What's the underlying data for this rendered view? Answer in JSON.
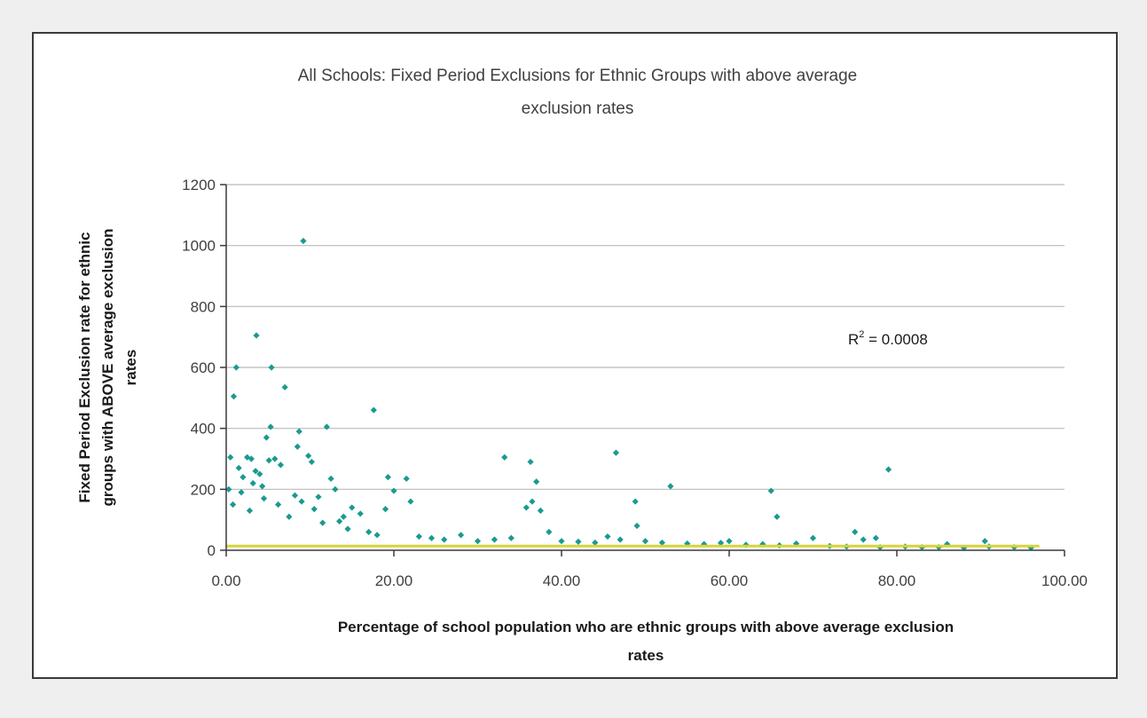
{
  "chart_data": {
    "type": "scatter",
    "title_lines": [
      "All Schools: Fixed Period Exclusions for Ethnic Groups with above average",
      "exclusion rates"
    ],
    "xlabel_lines": [
      "Percentage of school population who are ethnic groups with above average exclusion",
      "rates"
    ],
    "ylabel_lines": [
      "Fixed Period Exclusion rate for ethnic",
      "groups with ABOVE average exclusion",
      "rates"
    ],
    "xlim": [
      0,
      100
    ],
    "ylim": [
      0,
      1200
    ],
    "x_ticks": [
      "0.00",
      "20.00",
      "40.00",
      "60.00",
      "80.00",
      "100.00"
    ],
    "y_ticks": [
      "0",
      "200",
      "400",
      "600",
      "800",
      "1000",
      "1200"
    ],
    "grid": "horizontal",
    "legend": "none",
    "annotation": {
      "prefix": "R",
      "superscript": "2",
      "text": " = 0.0008"
    },
    "colors": {
      "points": "#1a9a92",
      "trendline": "#d7d43c",
      "grid": "#b9b9b9",
      "axis": "#3a3a3a"
    },
    "trendline": {
      "x": [
        0,
        97
      ],
      "y": [
        14,
        14
      ]
    },
    "series": [
      {
        "x": [
          9.2,
          3.6,
          1.2,
          5.4,
          7.0,
          0.9,
          17.6,
          12.0,
          5.3,
          8.7,
          4.8,
          9.8,
          10.2,
          8.5,
          5.1,
          2.5,
          0.5,
          1.5,
          2.0,
          3.0,
          3.5,
          4.0,
          5.8,
          6.5,
          3.2,
          4.3,
          9.0,
          12.5,
          13.0,
          11.0,
          10.5,
          19.3,
          20.0,
          21.5,
          22.0,
          19.0,
          16.0,
          15.0,
          14.0,
          13.5,
          33.2,
          36.3,
          37.0,
          36.5,
          35.8,
          37.5,
          38.5,
          46.5,
          48.8,
          49.0,
          53.0,
          65.0,
          65.7,
          79.0,
          75.0,
          76.0,
          77.5,
          90.5,
          86.0,
          70.0,
          0.3,
          0.8,
          1.8,
          2.8,
          4.5,
          6.2,
          7.5,
          8.2,
          11.5,
          14.5,
          17.0,
          18.0,
          23.0,
          24.5,
          26.0,
          28.0,
          30.0,
          32.0,
          34.0,
          40.0,
          42.0,
          44.0,
          45.5,
          47.0,
          50.0,
          52.0,
          55.0,
          57.0,
          59.0,
          60.0,
          62.0,
          64.0,
          66.0,
          68.0,
          72.0,
          74.0,
          78.0,
          81.0,
          83.0,
          85.0,
          88.0,
          91.0,
          94.0,
          96.0
        ],
        "y": [
          1015,
          705,
          600,
          600,
          535,
          505,
          460,
          405,
          405,
          390,
          370,
          310,
          290,
          340,
          295,
          305,
          305,
          270,
          240,
          300,
          260,
          250,
          300,
          280,
          220,
          210,
          160,
          235,
          200,
          175,
          135,
          240,
          195,
          235,
          160,
          135,
          120,
          140,
          110,
          95,
          305,
          290,
          225,
          160,
          140,
          130,
          60,
          320,
          160,
          80,
          210,
          195,
          110,
          265,
          60,
          35,
          40,
          30,
          20,
          40,
          200,
          150,
          190,
          130,
          170,
          150,
          110,
          180,
          90,
          70,
          60,
          50,
          45,
          40,
          35,
          50,
          30,
          35,
          40,
          30,
          28,
          25,
          45,
          35,
          30,
          25,
          22,
          20,
          24,
          30,
          18,
          20,
          16,
          22,
          14,
          12,
          10,
          12,
          10,
          10,
          8,
          12,
          10,
          8
        ]
      }
    ]
  }
}
